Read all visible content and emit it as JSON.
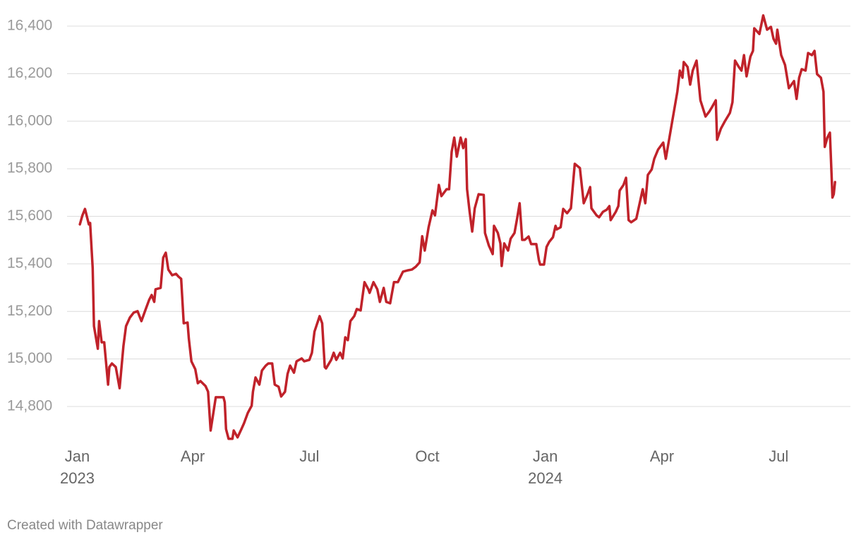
{
  "chart_data": {
    "type": "line",
    "color": "#c0222a",
    "grid": true,
    "footer": "Created with Datawrapper",
    "xlim": [
      "2022-12-24",
      "2024-08-26"
    ],
    "xticks": [
      {
        "value": "2023-01-01",
        "label": "Jan"
      },
      {
        "value": "2023-04-01",
        "label": "Apr"
      },
      {
        "value": "2023-07-01",
        "label": "Jul"
      },
      {
        "value": "2023-10-01",
        "label": "Oct"
      },
      {
        "value": "2024-01-01",
        "label": "Jan"
      },
      {
        "value": "2024-04-01",
        "label": "Apr"
      },
      {
        "value": "2024-07-01",
        "label": "Jul"
      }
    ],
    "xtick_years": [
      {
        "value": "2023-01-01",
        "label": "2023"
      },
      {
        "value": "2024-01-01",
        "label": "2024"
      }
    ],
    "ylim": [
      14650,
      16450
    ],
    "yticks": [
      {
        "value": 14800,
        "label": "14,800"
      },
      {
        "value": 15000,
        "label": "15,000"
      },
      {
        "value": 15200,
        "label": "15,200"
      },
      {
        "value": 15400,
        "label": "15,400"
      },
      {
        "value": 15600,
        "label": "15,600"
      },
      {
        "value": 15800,
        "label": "15,800"
      },
      {
        "value": 16000,
        "label": "16,000"
      },
      {
        "value": 16200,
        "label": "16,200"
      },
      {
        "value": 16400,
        "label": "16,400"
      }
    ],
    "x": [
      "2023-01-03",
      "2023-01-05",
      "2023-01-07",
      "2023-01-10",
      "2023-01-11",
      "2023-01-13",
      "2023-01-14",
      "2023-01-17",
      "2023-01-18",
      "2023-01-20",
      "2023-01-22",
      "2023-01-25",
      "2023-01-26",
      "2023-01-28",
      "2023-01-31",
      "2023-02-03",
      "2023-02-06",
      "2023-02-08",
      "2023-02-11",
      "2023-02-14",
      "2023-02-17",
      "2023-02-20",
      "2023-02-23",
      "2023-02-26",
      "2023-02-28",
      "2023-03-02",
      "2023-03-03",
      "2023-03-07",
      "2023-03-09",
      "2023-03-11",
      "2023-03-13",
      "2023-03-16",
      "2023-03-19",
      "2023-03-21",
      "2023-03-23",
      "2023-03-25",
      "2023-03-28",
      "2023-03-29",
      "2023-03-31",
      "2023-04-03",
      "2023-04-05",
      "2023-04-07",
      "2023-04-11",
      "2023-04-13",
      "2023-04-15",
      "2023-04-19",
      "2023-04-25",
      "2023-04-26",
      "2023-04-27",
      "2023-04-29",
      "2023-05-02",
      "2023-05-03",
      "2023-05-06",
      "2023-05-09",
      "2023-05-11",
      "2023-05-14",
      "2023-05-17",
      "2023-05-18",
      "2023-05-20",
      "2023-05-23",
      "2023-05-25",
      "2023-05-28",
      "2023-05-30",
      "2023-06-02",
      "2023-06-04",
      "2023-06-07",
      "2023-06-09",
      "2023-06-12",
      "2023-06-14",
      "2023-06-16",
      "2023-06-19",
      "2023-06-21",
      "2023-06-25",
      "2023-06-27",
      "2023-07-01",
      "2023-07-03",
      "2023-07-05",
      "2023-07-09",
      "2023-07-11",
      "2023-07-13",
      "2023-07-14",
      "2023-07-18",
      "2023-07-20",
      "2023-07-22",
      "2023-07-25",
      "2023-07-27",
      "2023-07-29",
      "2023-07-31",
      "2023-08-02",
      "2023-08-05",
      "2023-08-07",
      "2023-08-10",
      "2023-08-13",
      "2023-08-16",
      "2023-08-17",
      "2023-08-20",
      "2023-08-23",
      "2023-08-25",
      "2023-08-28",
      "2023-08-30",
      "2023-09-02",
      "2023-09-05",
      "2023-09-08",
      "2023-09-12",
      "2023-09-16",
      "2023-09-19",
      "2023-09-22",
      "2023-09-25",
      "2023-09-27",
      "2023-09-29",
      "2023-10-02",
      "2023-10-05",
      "2023-10-07",
      "2023-10-10",
      "2023-10-12",
      "2023-10-16",
      "2023-10-18",
      "2023-10-20",
      "2023-10-22",
      "2023-10-24",
      "2023-10-27",
      "2023-10-29",
      "2023-10-31",
      "2023-11-01",
      "2023-11-03",
      "2023-11-05",
      "2023-11-07",
      "2023-11-10",
      "2023-11-14",
      "2023-11-15",
      "2023-11-18",
      "2023-11-21",
      "2023-11-22",
      "2023-11-25",
      "2023-11-27",
      "2023-11-28",
      "2023-11-30",
      "2023-12-03",
      "2023-12-05",
      "2023-12-08",
      "2023-12-10",
      "2023-12-12",
      "2023-12-14",
      "2023-12-16",
      "2023-12-19",
      "2023-12-21",
      "2023-12-25",
      "2023-12-27",
      "2023-12-28",
      "2023-12-31",
      "2024-01-02",
      "2024-01-04",
      "2024-01-07",
      "2024-01-09",
      "2024-01-10",
      "2024-01-13",
      "2024-01-15",
      "2024-01-18",
      "2024-01-21",
      "2024-01-24",
      "2024-01-28",
      "2024-01-31",
      "2024-02-03",
      "2024-02-05",
      "2024-02-06",
      "2024-02-10",
      "2024-02-12",
      "2024-02-15",
      "2024-02-18",
      "2024-02-20",
      "2024-02-21",
      "2024-02-25",
      "2024-02-27",
      "2024-02-28",
      "2024-03-02",
      "2024-03-04",
      "2024-03-06",
      "2024-03-08",
      "2024-03-12",
      "2024-03-17",
      "2024-03-19",
      "2024-03-21",
      "2024-03-24",
      "2024-03-26",
      "2024-03-29",
      "2024-04-02",
      "2024-04-04",
      "2024-04-09",
      "2024-04-13",
      "2024-04-15",
      "2024-04-17",
      "2024-04-18",
      "2024-04-21",
      "2024-04-23",
      "2024-04-25",
      "2024-04-28",
      "2024-05-01",
      "2024-05-05",
      "2024-05-08",
      "2024-05-10",
      "2024-05-13",
      "2024-05-14",
      "2024-05-17",
      "2024-05-20",
      "2024-05-24",
      "2024-05-26",
      "2024-05-28",
      "2024-05-31",
      "2024-06-02",
      "2024-06-04",
      "2024-06-06",
      "2024-06-09",
      "2024-06-11",
      "2024-06-12",
      "2024-06-16",
      "2024-06-19",
      "2024-06-22",
      "2024-06-25",
      "2024-06-27",
      "2024-06-29",
      "2024-06-30",
      "2024-07-03",
      "2024-07-06",
      "2024-07-09",
      "2024-07-13",
      "2024-07-15",
      "2024-07-17",
      "2024-07-19",
      "2024-07-22",
      "2024-07-24",
      "2024-07-27",
      "2024-07-29",
      "2024-07-31",
      "2024-08-03",
      "2024-08-05",
      "2024-08-06",
      "2024-08-08",
      "2024-08-10",
      "2024-08-12",
      "2024-08-13",
      "2024-08-14"
    ],
    "values": [
      15566,
      15604,
      15631,
      15566,
      15572,
      15382,
      15138,
      15043,
      15159,
      15070,
      15070,
      14892,
      14966,
      14981,
      14966,
      14877,
      15055,
      15138,
      15174,
      15195,
      15201,
      15159,
      15204,
      15248,
      15269,
      15240,
      15293,
      15299,
      15426,
      15447,
      15376,
      15352,
      15358,
      15346,
      15337,
      15150,
      15153,
      15085,
      14990,
      14957,
      14898,
      14907,
      14886,
      14862,
      14699,
      14839,
      14839,
      14818,
      14705,
      14664,
      14664,
      14699,
      14670,
      14705,
      14729,
      14773,
      14803,
      14862,
      14922,
      14892,
      14951,
      14972,
      14981,
      14981,
      14892,
      14883,
      14842,
      14862,
      14937,
      14972,
      14942,
      14990,
      15002,
      14990,
      14996,
      15026,
      15115,
      15180,
      15150,
      14966,
      14960,
      14996,
      15026,
      14996,
      15026,
      15002,
      15091,
      15079,
      15159,
      15180,
      15210,
      15204,
      15323,
      15293,
      15278,
      15323,
      15293,
      15240,
      15299,
      15240,
      15234,
      15323,
      15323,
      15367,
      15373,
      15376,
      15388,
      15406,
      15516,
      15456,
      15554,
      15625,
      15604,
      15732,
      15685,
      15714,
      15714,
      15872,
      15931,
      15851,
      15931,
      15887,
      15925,
      15714,
      15619,
      15536,
      15634,
      15693,
      15690,
      15530,
      15477,
      15441,
      15560,
      15530,
      15486,
      15391,
      15486,
      15456,
      15506,
      15530,
      15590,
      15655,
      15501,
      15501,
      15515,
      15483,
      15483,
      15417,
      15397,
      15397,
      15471,
      15492,
      15512,
      15560,
      15545,
      15554,
      15631,
      15613,
      15634,
      15821,
      15803,
      15655,
      15693,
      15723,
      15634,
      15604,
      15596,
      15619,
      15628,
      15643,
      15584,
      15619,
      15643,
      15708,
      15732,
      15762,
      15584,
      15575,
      15590,
      15714,
      15655,
      15774,
      15797,
      15842,
      15881,
      15910,
      15842,
      15999,
      16124,
      16213,
      16183,
      16249,
      16228,
      16154,
      16213,
      16255,
      16088,
      16020,
      16041,
      16059,
      16088,
      15922,
      15969,
      15999,
      16035,
      16080,
      16255,
      16228,
      16213,
      16278,
      16189,
      16272,
      16296,
      16391,
      16367,
      16445,
      16385,
      16397,
      16347,
      16326,
      16385,
      16278,
      16237,
      16139,
      16169,
      16094,
      16183,
      16219,
      16213,
      16287,
      16278,
      16296,
      16198,
      16183,
      16124,
      15892,
      15931,
      15952,
      15679,
      15693,
      15744
    ]
  }
}
